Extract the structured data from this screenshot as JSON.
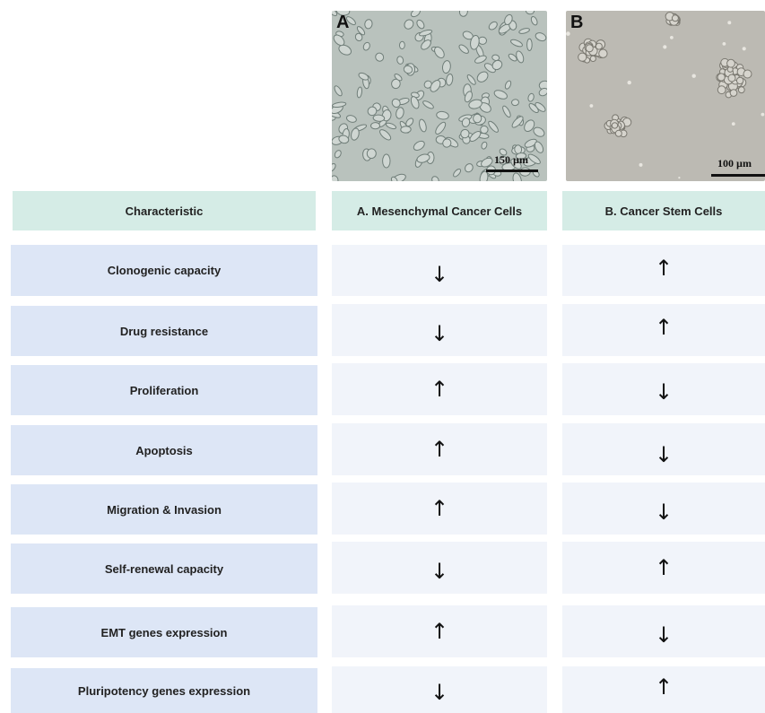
{
  "panels": {
    "a": {
      "letter": "A",
      "scale": "150 µm"
    },
    "b": {
      "letter": "B",
      "scale": "100 µm"
    }
  },
  "table": {
    "headers": [
      "Characteristic",
      "A. Mesenchymal Cancer Cells",
      "B. Cancer Stem Cells"
    ],
    "rows": [
      {
        "label": "Clonogenic capacity",
        "a": "↓",
        "b": "↑"
      },
      {
        "label": "Drug resistance",
        "a": "↓",
        "b": "↑"
      },
      {
        "label": "Proliferation",
        "a": "↑",
        "b": "↓"
      },
      {
        "label": "Apoptosis",
        "a": "↑",
        "b": "↓"
      },
      {
        "label": "Migration & Invasion",
        "a": "↑",
        "b": "↓"
      },
      {
        "label": "Self-renewal capacity",
        "a": "↓",
        "b": "↑"
      },
      {
        "label": "EMT genes expression",
        "a": "↑",
        "b": "↓"
      },
      {
        "label": "Pluripotency genes expression",
        "a": "↓",
        "b": "↑"
      }
    ]
  }
}
